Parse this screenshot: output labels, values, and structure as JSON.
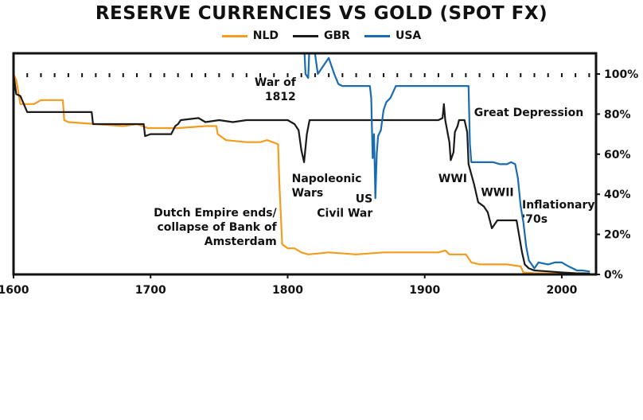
{
  "chart_data": {
    "type": "line",
    "title": "RESERVE CURRENCIES VS GOLD (SPOT FX)",
    "xlabel": "",
    "ylabel": "",
    "xlim": [
      1600,
      2025
    ],
    "ylim": [
      0,
      100
    ],
    "x_ticks": [
      1600,
      1700,
      1800,
      1900,
      2000
    ],
    "y_ticks": [
      0,
      20,
      40,
      60,
      80,
      100
    ],
    "y_tick_labels": [
      "0%",
      "20%",
      "40%",
      "60%",
      "80%",
      "100%"
    ],
    "y_axis_side": "right",
    "grid": false,
    "legend_position": "top-center",
    "series": [
      {
        "name": "NLD",
        "color": "#f39c1f",
        "points": [
          [
            1600,
            100
          ],
          [
            1602,
            97
          ],
          [
            1605,
            85
          ],
          [
            1615,
            85
          ],
          [
            1620,
            87
          ],
          [
            1636,
            87
          ],
          [
            1637,
            77
          ],
          [
            1640,
            76
          ],
          [
            1660,
            75
          ],
          [
            1680,
            74
          ],
          [
            1690,
            75
          ],
          [
            1698,
            73
          ],
          [
            1720,
            73
          ],
          [
            1740,
            74
          ],
          [
            1748,
            74
          ],
          [
            1749,
            70
          ],
          [
            1755,
            67
          ],
          [
            1770,
            66
          ],
          [
            1780,
            66
          ],
          [
            1785,
            67
          ],
          [
            1793,
            65
          ],
          [
            1794,
            45
          ],
          [
            1796,
            15
          ],
          [
            1800,
            13
          ],
          [
            1805,
            13
          ],
          [
            1810,
            11
          ],
          [
            1815,
            10
          ],
          [
            1830,
            11
          ],
          [
            1850,
            10
          ],
          [
            1870,
            11
          ],
          [
            1900,
            11
          ],
          [
            1910,
            11
          ],
          [
            1915,
            12
          ],
          [
            1918,
            10
          ],
          [
            1920,
            10
          ],
          [
            1930,
            10
          ],
          [
            1934,
            6
          ],
          [
            1940,
            5
          ],
          [
            1950,
            5
          ],
          [
            1960,
            5
          ],
          [
            1970,
            4
          ],
          [
            1972,
            1
          ],
          [
            1980,
            0.6
          ],
          [
            2000,
            0.4
          ],
          [
            2020,
            0.3
          ]
        ]
      },
      {
        "name": "GBR",
        "color": "#1a1a1a",
        "points": [
          [
            1600,
            100
          ],
          [
            1602,
            90
          ],
          [
            1605,
            89
          ],
          [
            1610,
            81
          ],
          [
            1640,
            81
          ],
          [
            1650,
            81
          ],
          [
            1657,
            81
          ],
          [
            1658,
            75
          ],
          [
            1670,
            75
          ],
          [
            1690,
            75
          ],
          [
            1695,
            75
          ],
          [
            1696,
            69
          ],
          [
            1700,
            70
          ],
          [
            1715,
            70
          ],
          [
            1718,
            74
          ],
          [
            1720,
            75
          ],
          [
            1722,
            77
          ],
          [
            1735,
            78
          ],
          [
            1740,
            76
          ],
          [
            1750,
            77
          ],
          [
            1760,
            76
          ],
          [
            1770,
            77
          ],
          [
            1780,
            77
          ],
          [
            1790,
            77
          ],
          [
            1797,
            77
          ],
          [
            1800,
            77
          ],
          [
            1805,
            75
          ],
          [
            1808,
            72
          ],
          [
            1810,
            62
          ],
          [
            1812,
            56
          ],
          [
            1814,
            70
          ],
          [
            1816,
            77
          ],
          [
            1820,
            77
          ],
          [
            1840,
            77
          ],
          [
            1860,
            77
          ],
          [
            1880,
            77
          ],
          [
            1900,
            77
          ],
          [
            1910,
            77
          ],
          [
            1913,
            78
          ],
          [
            1914,
            85
          ],
          [
            1915,
            77
          ],
          [
            1918,
            66
          ],
          [
            1919,
            57
          ],
          [
            1921,
            61
          ],
          [
            1922,
            71
          ],
          [
            1924,
            74
          ],
          [
            1925,
            77
          ],
          [
            1929,
            77
          ],
          [
            1931,
            71
          ],
          [
            1932,
            55
          ],
          [
            1936,
            45
          ],
          [
            1939,
            36
          ],
          [
            1943,
            34
          ],
          [
            1946,
            31
          ],
          [
            1949,
            23
          ],
          [
            1953,
            27
          ],
          [
            1967,
            27
          ],
          [
            1968,
            23
          ],
          [
            1971,
            11
          ],
          [
            1973,
            5
          ],
          [
            1976,
            3
          ],
          [
            1980,
            2
          ],
          [
            1990,
            1.5
          ],
          [
            2000,
            1
          ],
          [
            2010,
            0.6
          ],
          [
            2020,
            0.5
          ]
        ]
      },
      {
        "name": "USA",
        "color": "#1a6bb0",
        "points": [
          [
            1811,
            130
          ],
          [
            1813,
            100
          ],
          [
            1815,
            98
          ],
          [
            1816,
            115
          ],
          [
            1820,
            110
          ],
          [
            1822,
            100
          ],
          [
            1830,
            108
          ],
          [
            1834,
            100
          ],
          [
            1837,
            95
          ],
          [
            1840,
            94
          ],
          [
            1860,
            94
          ],
          [
            1861,
            88
          ],
          [
            1862,
            58
          ],
          [
            1863,
            70
          ],
          [
            1864,
            38
          ],
          [
            1865,
            60
          ],
          [
            1866,
            69
          ],
          [
            1868,
            72
          ],
          [
            1870,
            82
          ],
          [
            1872,
            86
          ],
          [
            1875,
            88
          ],
          [
            1879,
            94
          ],
          [
            1900,
            94
          ],
          [
            1910,
            94
          ],
          [
            1920,
            94
          ],
          [
            1932,
            94
          ],
          [
            1933,
            65
          ],
          [
            1934,
            56
          ],
          [
            1940,
            56
          ],
          [
            1950,
            56
          ],
          [
            1955,
            55
          ],
          [
            1960,
            55
          ],
          [
            1963,
            56
          ],
          [
            1966,
            55
          ],
          [
            1968,
            48
          ],
          [
            1970,
            34
          ],
          [
            1971,
            30
          ],
          [
            1972,
            26
          ],
          [
            1974,
            14
          ],
          [
            1976,
            7
          ],
          [
            1980,
            3
          ],
          [
            1983,
            6
          ],
          [
            1990,
            5
          ],
          [
            1995,
            6
          ],
          [
            2000,
            6
          ],
          [
            2005,
            4
          ],
          [
            2008,
            3
          ],
          [
            2011,
            2
          ],
          [
            2015,
            2
          ],
          [
            2020,
            1.5
          ]
        ]
      }
    ],
    "annotations": [
      {
        "lines": [
          "War of",
          "1812"
        ],
        "anchor": "end",
        "at": [
          1806,
          94
        ]
      },
      {
        "lines": [
          "Napoleonic",
          "Wars"
        ],
        "anchor": "start",
        "at": [
          1803,
          46
        ]
      },
      {
        "lines": [
          "US",
          "Civil War"
        ],
        "anchor": "end",
        "at": [
          1862,
          36
        ]
      },
      {
        "lines": [
          "Dutch Empire ends/",
          "collapse of Bank of",
          "Amsterdam"
        ],
        "anchor": "end",
        "at": [
          1792,
          29
        ]
      },
      {
        "lines": [
          "Great Depression"
        ],
        "anchor": "start",
        "at": [
          1936,
          79
        ]
      },
      {
        "lines": [
          "WWI"
        ],
        "anchor": "start",
        "at": [
          1910,
          46
        ]
      },
      {
        "lines": [
          "WWII"
        ],
        "anchor": "start",
        "at": [
          1941,
          39
        ]
      },
      {
        "lines": [
          "Inflationary",
          "'70s"
        ],
        "anchor": "start",
        "at": [
          1971,
          33
        ]
      }
    ]
  }
}
